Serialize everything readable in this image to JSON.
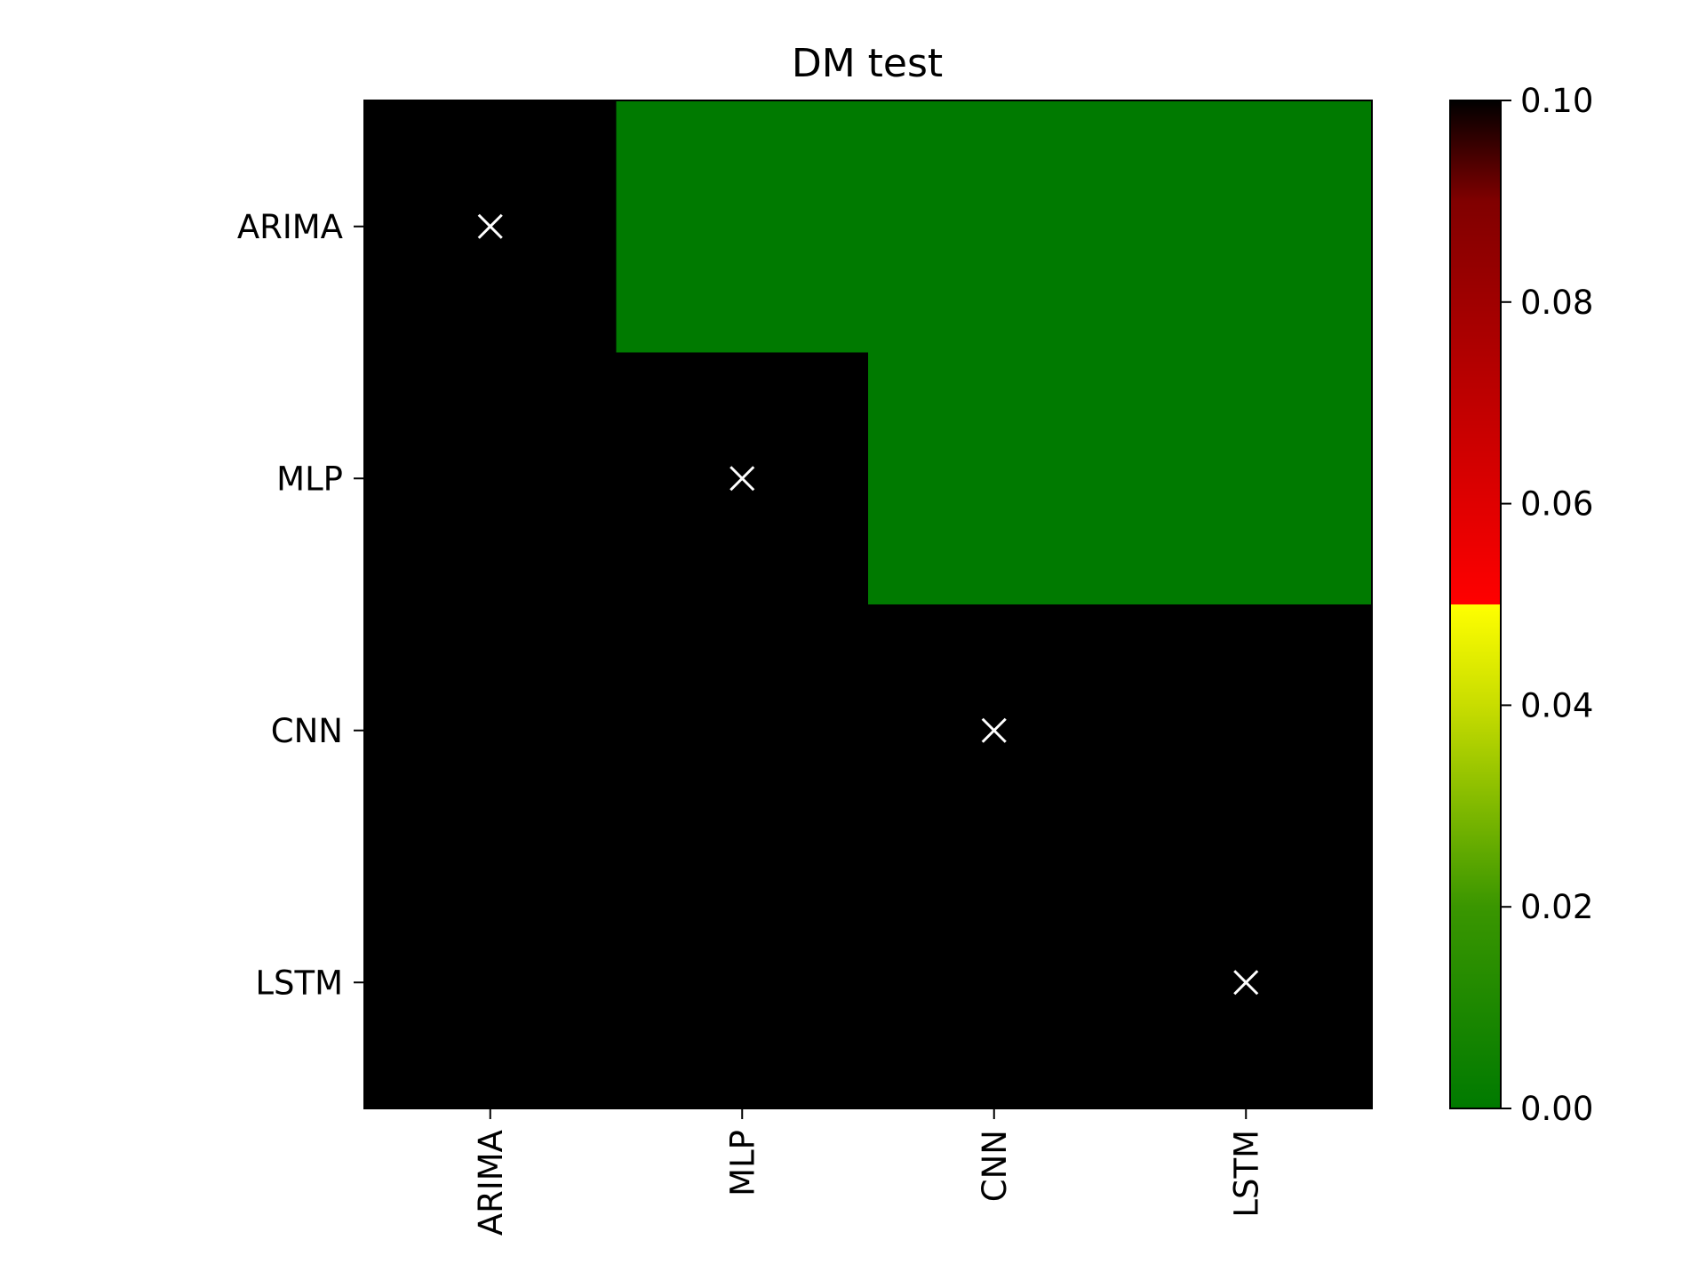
{
  "chart_data": {
    "type": "heatmap",
    "title": "DM test",
    "xlabel": "",
    "ylabel": "",
    "x_categories": [
      "ARIMA",
      "MLP",
      "CNN",
      "LSTM"
    ],
    "y_categories": [
      "ARIMA",
      "MLP",
      "CNN",
      "LSTM"
    ],
    "cells": [
      [
        "masked",
        0.0,
        0.0,
        0.0
      ],
      [
        "masked",
        "masked",
        0.0,
        0.0
      ],
      [
        "masked",
        "masked",
        "masked",
        "masked"
      ],
      [
        "masked",
        "masked",
        "masked",
        "masked"
      ]
    ],
    "diagonal_marker": "×",
    "masked_color": "#000000",
    "colorbar": {
      "range": [
        0.0,
        0.1
      ],
      "ticks": [
        "0.00",
        "0.02",
        "0.04",
        "0.06",
        "0.08",
        "0.10"
      ],
      "stops": [
        {
          "value": 0.0,
          "color": "#007a00"
        },
        {
          "value": 0.02,
          "color": "#3a9600"
        },
        {
          "value": 0.04,
          "color": "#c8dd00"
        },
        {
          "value": 0.05,
          "color": "#ffff00"
        },
        {
          "value": 0.05,
          "color": "#ff0000"
        },
        {
          "value": 0.09,
          "color": "#800000"
        },
        {
          "value": 0.1,
          "color": "#000000"
        }
      ]
    },
    "x_tick_rotation": "vertical",
    "grid": false,
    "legend": "colorbar-right"
  }
}
